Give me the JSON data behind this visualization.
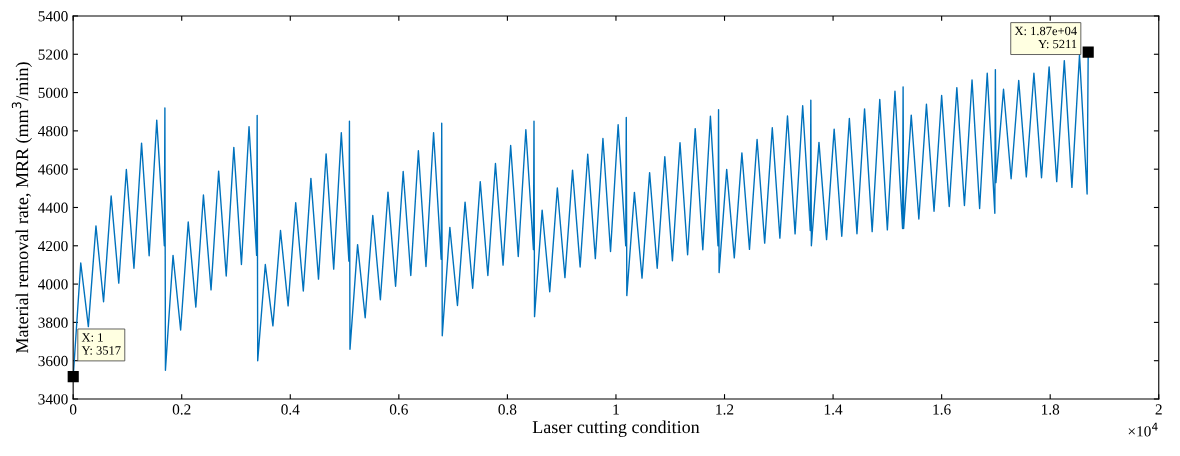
{
  "chart_data": {
    "type": "line",
    "xlabel": "Laser cutting condition",
    "ylabel": "Material removal rate, MRR (mm$^{3}$/min)",
    "xlim": [
      0,
      2
    ],
    "ylim": [
      3400,
      5400
    ],
    "xticks": [
      0,
      0.2,
      0.4,
      0.6,
      0.8,
      1,
      1.2,
      1.4,
      1.6,
      1.8,
      2
    ],
    "yticks": [
      3400,
      3600,
      3800,
      4000,
      4200,
      4400,
      4600,
      4800,
      5000,
      5200,
      5400
    ],
    "grid": false,
    "legend": false,
    "marker": "none",
    "line_style": "solid",
    "x": [
      0.0001,
      0.014,
      0.028,
      0.042,
      0.056,
      0.07,
      0.084,
      0.098,
      0.112,
      0.126,
      0.14,
      0.154,
      0.168,
      0.169,
      0.17,
      0.184,
      0.198,
      0.212,
      0.226,
      0.24,
      0.254,
      0.268,
      0.282,
      0.296,
      0.31,
      0.324,
      0.338,
      0.339,
      0.34,
      0.354,
      0.368,
      0.382,
      0.396,
      0.41,
      0.424,
      0.438,
      0.452,
      0.466,
      0.48,
      0.494,
      0.508,
      0.509,
      0.51,
      0.524,
      0.538,
      0.552,
      0.566,
      0.58,
      0.594,
      0.608,
      0.622,
      0.636,
      0.65,
      0.664,
      0.678,
      0.679,
      0.68,
      0.694,
      0.708,
      0.722,
      0.736,
      0.75,
      0.764,
      0.778,
      0.792,
      0.806,
      0.82,
      0.834,
      0.848,
      0.849,
      0.85,
      0.864,
      0.878,
      0.892,
      0.906,
      0.92,
      0.934,
      0.948,
      0.962,
      0.976,
      0.99,
      1.004,
      1.018,
      1.019,
      1.02,
      1.034,
      1.048,
      1.062,
      1.076,
      1.09,
      1.104,
      1.118,
      1.132,
      1.146,
      1.16,
      1.174,
      1.188,
      1.189,
      1.19,
      1.204,
      1.218,
      1.232,
      1.246,
      1.26,
      1.274,
      1.288,
      1.302,
      1.316,
      1.33,
      1.344,
      1.358,
      1.359,
      1.36,
      1.374,
      1.388,
      1.402,
      1.416,
      1.43,
      1.444,
      1.458,
      1.472,
      1.486,
      1.5,
      1.514,
      1.528,
      1.529,
      1.53,
      1.544,
      1.558,
      1.572,
      1.586,
      1.6,
      1.614,
      1.628,
      1.642,
      1.656,
      1.67,
      1.684,
      1.698,
      1.699,
      1.7,
      1.714,
      1.728,
      1.742,
      1.756,
      1.77,
      1.784,
      1.798,
      1.812,
      1.826,
      1.84,
      1.854,
      1.868,
      1.87
    ],
    "series": [
      {
        "color": "#0072bd",
        "values": [
          3517,
          4110,
          3778,
          4304,
          3908,
          4460,
          4005,
          4598,
          4083,
          4736,
          4148,
          4856,
          4200,
          4920,
          3550,
          4150,
          3760,
          4324,
          3880,
          4465,
          3970,
          4590,
          4042,
          4714,
          4102,
          4822,
          4150,
          4880,
          3600,
          4102,
          3782,
          4280,
          3886,
          4425,
          3964,
          4552,
          4026,
          4680,
          4078,
          4790,
          4120,
          4850,
          3660,
          4206,
          3824,
          4358,
          3918,
          4480,
          3989,
          4588,
          4045,
          4696,
          4092,
          4790,
          4130,
          4840,
          3730,
          4296,
          3888,
          4428,
          3978,
          4535,
          4045,
          4630,
          4099,
          4724,
          4144,
          4806,
          4180,
          4850,
          3830,
          4386,
          3960,
          4502,
          4034,
          4595,
          4089,
          4678,
          4133,
          4760,
          4170,
          4832,
          4200,
          4870,
          3940,
          4479,
          4031,
          4582,
          4083,
          4665,
          4122,
          4738,
          4153,
          4812,
          4179,
          4876,
          4200,
          4910,
          4060,
          4599,
          4137,
          4685,
          4181,
          4755,
          4214,
          4816,
          4240,
          4878,
          4262,
          4931,
          4280,
          4960,
          4200,
          4740,
          4232,
          4809,
          4250,
          4865,
          4263,
          4915,
          4274,
          4964,
          4283,
          5007,
          4290,
          5030,
          4290,
          4882,
          4340,
          4939,
          4380,
          4985,
          4405,
          5026,
          4410,
          5066,
          4395,
          5101,
          4370,
          5120,
          4530,
          5017,
          4550,
          5063,
          4560,
          5101,
          4555,
          5134,
          4535,
          5167,
          4505,
          5196,
          4470,
          5211
        ]
      }
    ],
    "annotations": [
      {
        "text": "X: 1\nY: 3517",
        "x": 0.0001,
        "y": 3517
      },
      {
        "text": "X: 1.87e+04\nY: 5211",
        "x": 1.87,
        "y": 5211
      },
      "×10$^{4}$"
    ]
  }
}
